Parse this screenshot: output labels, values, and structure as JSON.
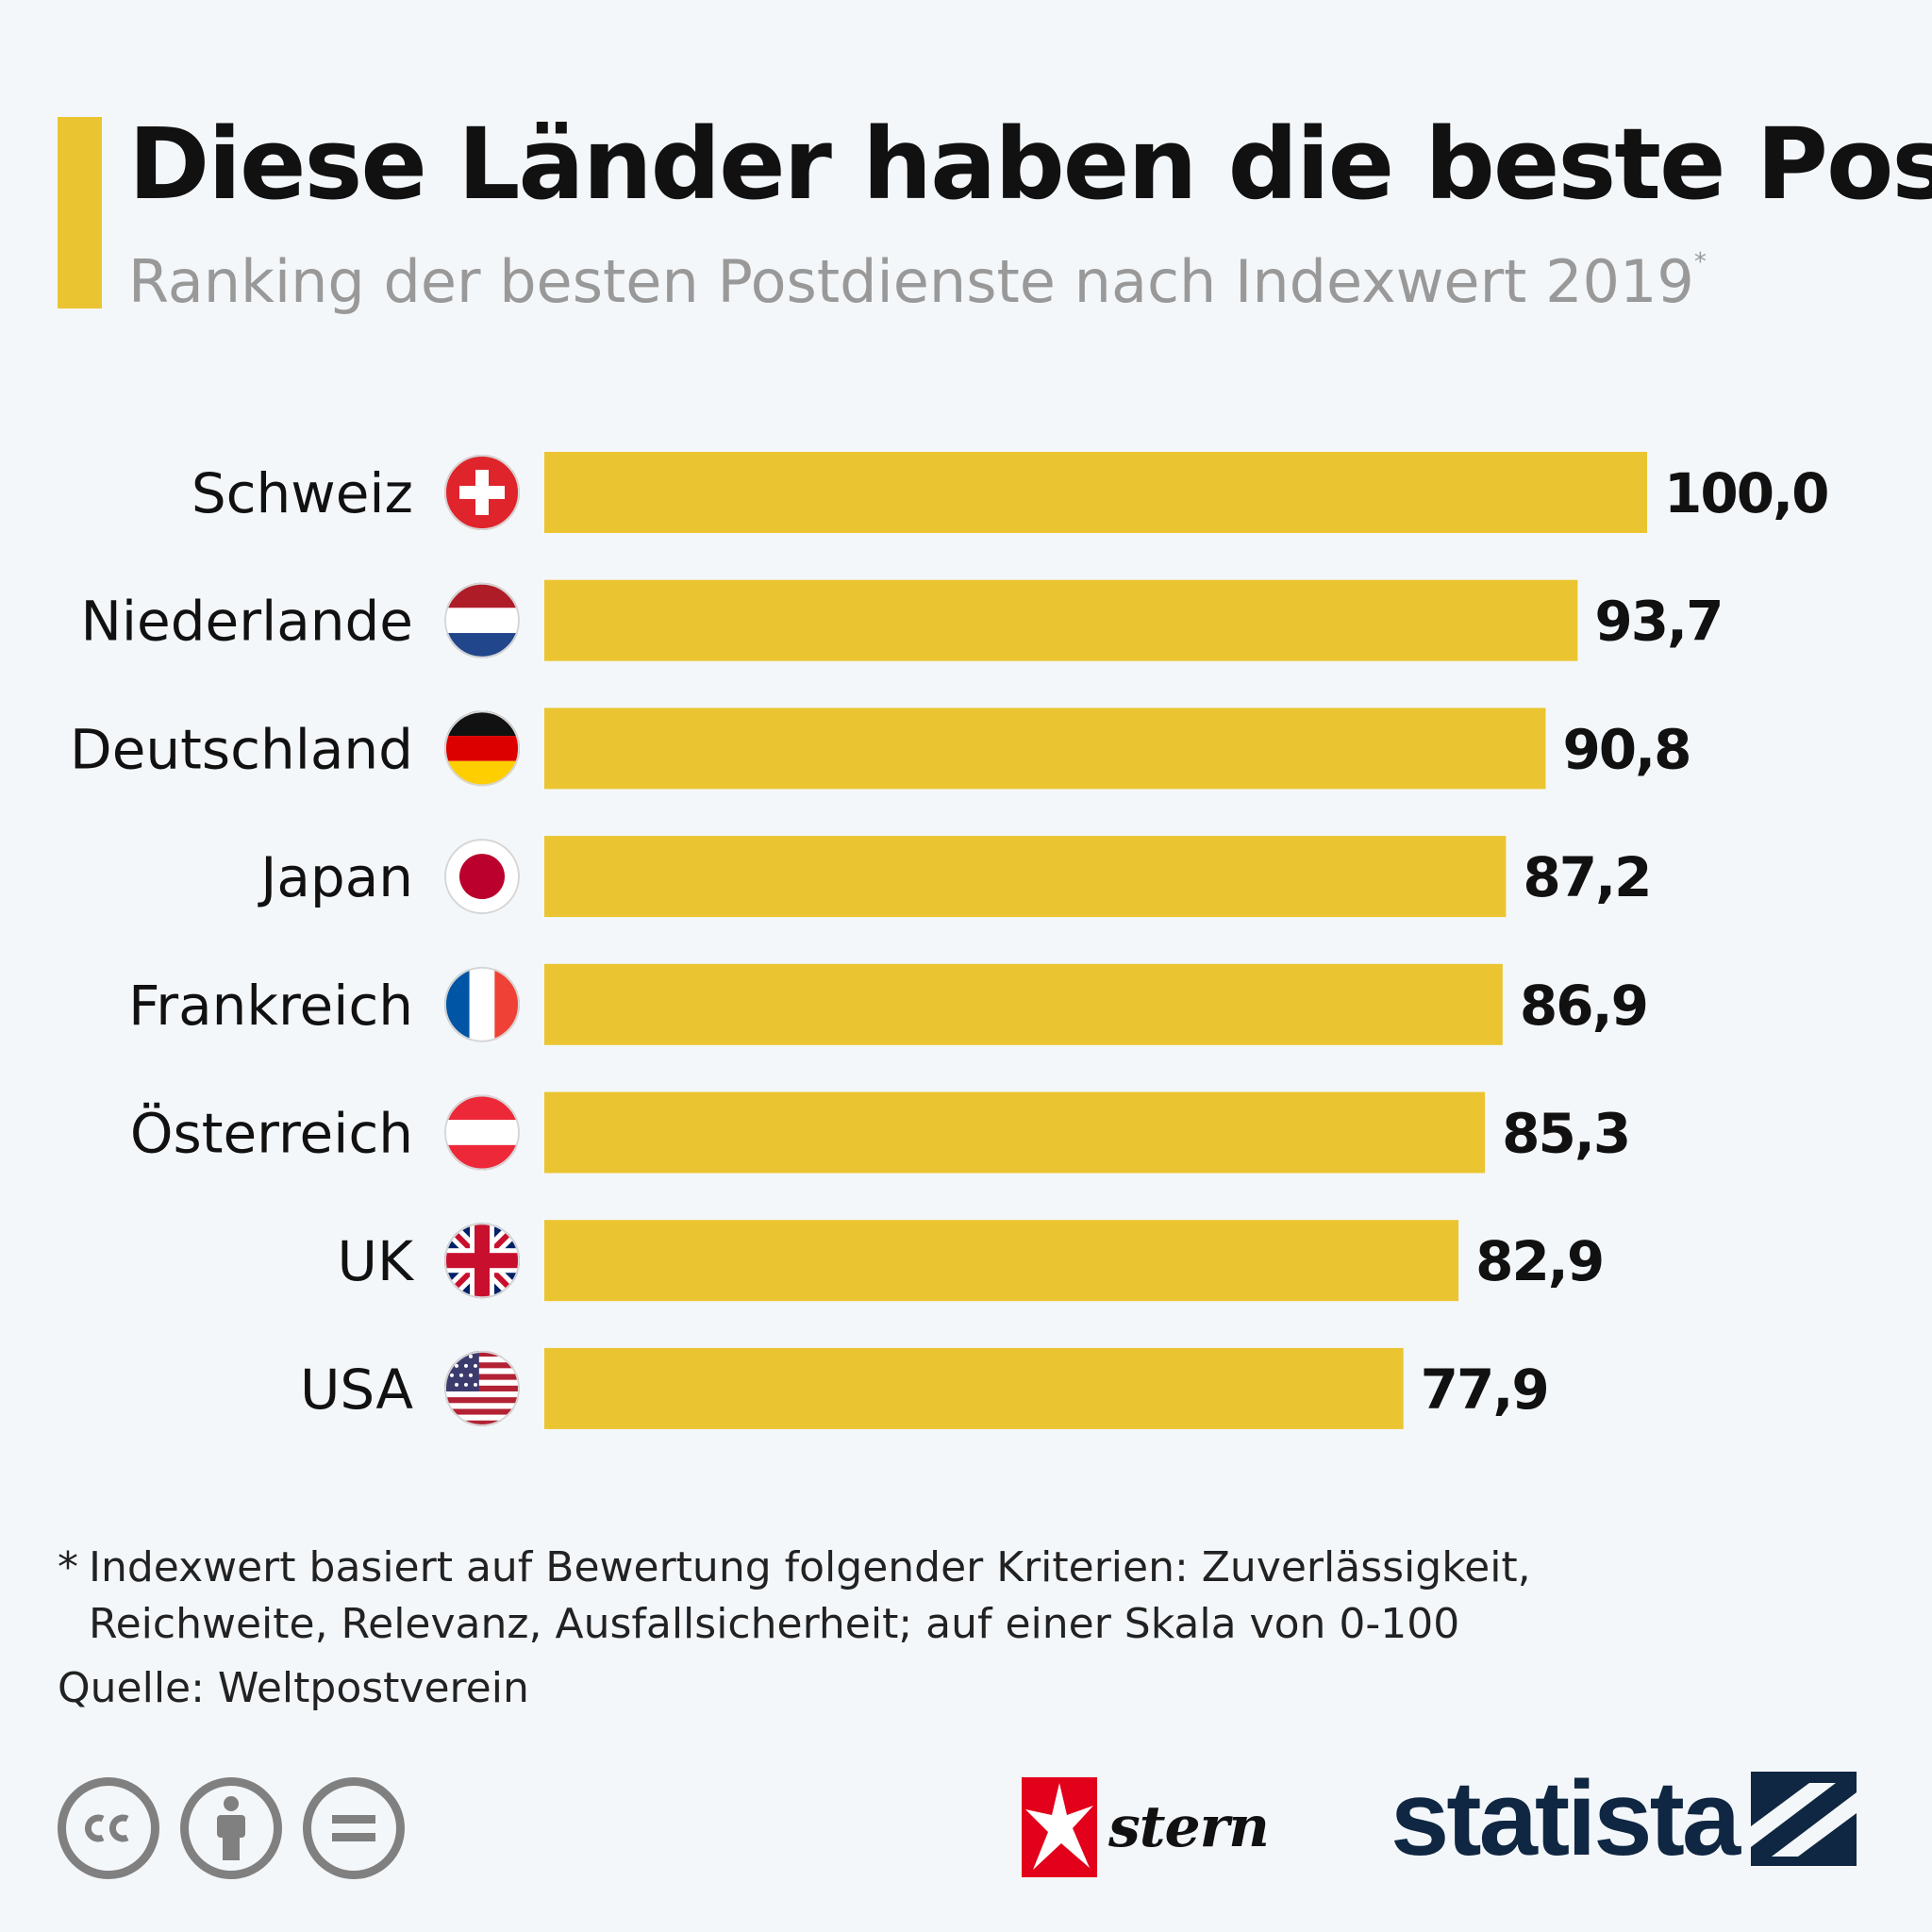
{
  "header": {
    "title": "Diese Länder haben die beste Post",
    "subtitle": "Ranking der besten Postdienste nach Indexwert 2019",
    "subtitle_mark": "*"
  },
  "chart_data": {
    "type": "bar",
    "orientation": "horizontal",
    "title": "Diese Länder haben die beste Post",
    "subtitle": "Ranking der besten Postdienste nach Indexwert 2019",
    "categories": [
      "Schweiz",
      "Niederlande",
      "Deutschland",
      "Japan",
      "Frankreich",
      "Österreich",
      "UK",
      "USA"
    ],
    "flags": [
      "switzerland-flag-icon",
      "netherlands-flag-icon",
      "germany-flag-icon",
      "japan-flag-icon",
      "france-flag-icon",
      "austria-flag-icon",
      "uk-flag-icon",
      "usa-flag-icon"
    ],
    "values": [
      100.0,
      93.7,
      90.8,
      87.2,
      86.9,
      85.3,
      82.9,
      77.9
    ],
    "value_labels": [
      "100,0",
      "93,7",
      "90,8",
      "87,2",
      "86,9",
      "85,3",
      "82,9",
      "77,9"
    ],
    "xlim": [
      0,
      100
    ],
    "bar_color": "#ebc531",
    "grid": false,
    "axes_visible": false
  },
  "footer": {
    "footnote_mark": "*",
    "footnote_lines": [
      "Indexwert basiert auf Bewertung folgender Kriterien: Zuverlässigkeit,",
      "Reichweite, Relevanz, Ausfallsicherheit; auf einer Skala von 0-100"
    ],
    "source": "Quelle: Weltpostverein",
    "stern_text": "stern",
    "statista_text": "statista"
  },
  "colors": {
    "accent": "#ebc531",
    "background": "#f4f7fa",
    "statista_navy": "#0f2742",
    "stern_red": "#e2001a"
  }
}
